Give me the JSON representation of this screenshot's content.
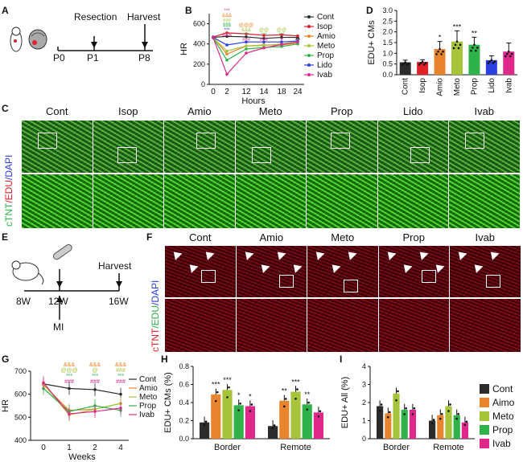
{
  "panels": {
    "A": {
      "letter": "A",
      "labels": {
        "resection": "Resection",
        "harvest": "Harvest",
        "p0": "P0",
        "p1": "P1",
        "p8": "P8"
      }
    },
    "B": {
      "letter": "B"
    },
    "C": {
      "letter": "C",
      "groups": [
        "Cont",
        "Isop",
        "Amio",
        "Meto",
        "Prop",
        "Lido",
        "Ivab"
      ],
      "ylabel": [
        "cTNT",
        "/EDU",
        "/DAPI"
      ]
    },
    "D": {
      "letter": "D"
    },
    "E": {
      "letter": "E",
      "labels": {
        "harvest": "Harvest",
        "w8": "8W",
        "w12": "12W",
        "w16": "16W",
        "mi": "MI"
      }
    },
    "F": {
      "letter": "F",
      "groups": [
        "Cont",
        "Amio",
        "Meto",
        "Prop",
        "Ivab"
      ],
      "ylabel": [
        "cTNT",
        "/EDU",
        "/DAPI"
      ]
    },
    "G": {
      "letter": "G"
    },
    "H": {
      "letter": "H"
    },
    "I": {
      "letter": "I"
    },
    "HI_legend": [
      "Cont",
      "Aimo",
      "Meto",
      "Prop",
      "Ivab"
    ]
  },
  "colors": {
    "Cont": "#2b2b2b",
    "Isop": "#e0212a",
    "Amio": "#e9842e",
    "Meto": "#a6c43a",
    "Prop": "#2fb24a",
    "Lido": "#2c3fe0",
    "Ivab": "#e0288a"
  },
  "chart_data": [
    {
      "id": "B",
      "type": "line",
      "xlabel": "Hours",
      "ylabel": "HR",
      "x": [
        0,
        2,
        12,
        14,
        18,
        24
      ],
      "xticks": [
        "0",
        "2",
        "12",
        "14",
        "18",
        "24"
      ],
      "ylim": [
        0,
        700
      ],
      "yticks": [
        0,
        200,
        400,
        600
      ],
      "series": [
        {
          "name": "Cont",
          "values": [
            465,
            475,
            470,
            455,
            465,
            465
          ]
        },
        {
          "name": "Isop",
          "values": [
            470,
            510,
            500,
            485,
            490,
            480
          ]
        },
        {
          "name": "Amio",
          "values": [
            465,
            300,
            380,
            390,
            390,
            410
          ]
        },
        {
          "name": "Meto",
          "values": [
            460,
            330,
            380,
            385,
            400,
            425
          ]
        },
        {
          "name": "Prop",
          "values": [
            460,
            240,
            350,
            365,
            375,
            400
          ]
        },
        {
          "name": "Lido",
          "values": [
            465,
            390,
            420,
            420,
            420,
            430
          ]
        },
        {
          "name": "Ivab",
          "values": [
            460,
            100,
            310,
            360,
            395,
            420
          ]
        }
      ],
      "legend_position": "right",
      "annotations": [
        "***",
        "&&&",
        "###",
        "$$$",
        "***",
        "&&&",
        "@@@",
        "&&&",
        "***",
        "###",
        "$$$",
        "@@",
        "***",
        "###",
        "@@",
        "***",
        "#",
        "**"
      ]
    },
    {
      "id": "D",
      "type": "bar",
      "ylabel": "EDU+ CMs",
      "categories": [
        "Cont",
        "Isop",
        "Amio",
        "Meto",
        "Prop",
        "Lido",
        "Ivab"
      ],
      "values": [
        0.58,
        0.6,
        1.2,
        1.55,
        1.4,
        0.68,
        1.08
      ],
      "errors": [
        0.1,
        0.1,
        0.35,
        0.5,
        0.35,
        0.2,
        0.4
      ],
      "ylim": [
        0,
        3.0
      ],
      "yticks": [
        0.0,
        0.5,
        1.0,
        1.5,
        2.0,
        2.5,
        3.0
      ],
      "significance": [
        "",
        "",
        "*",
        "***",
        "**",
        "",
        ""
      ]
    },
    {
      "id": "G",
      "type": "line",
      "xlabel": "Weeks",
      "ylabel": "HR",
      "x": [
        0,
        1,
        2,
        4
      ],
      "xticks": [
        "0",
        "1",
        "2",
        "4"
      ],
      "ylim": [
        400,
        700
      ],
      "yticks": [
        400,
        500,
        600,
        700
      ],
      "series": [
        {
          "name": "Cont",
          "values": [
            645,
            625,
            620,
            600
          ]
        },
        {
          "name": "Amio",
          "values": [
            640,
            530,
            535,
            560
          ]
        },
        {
          "name": "Meto",
          "values": [
            645,
            510,
            535,
            560
          ]
        },
        {
          "name": "Prop",
          "values": [
            625,
            525,
            550,
            530
          ]
        },
        {
          "name": "Ivab",
          "values": [
            650,
            515,
            525,
            540
          ]
        }
      ],
      "legend_position": "right",
      "annotations": [
        "&&&",
        "@@@",
        "***",
        "###",
        "&&&",
        "@",
        "***",
        "###",
        "&&&",
        "###",
        "***",
        "###"
      ]
    },
    {
      "id": "H",
      "type": "bar",
      "ylabel": "EDU+ CMs (%)",
      "groups": [
        "Border",
        "Remote"
      ],
      "series": [
        {
          "name": "Cont",
          "values": [
            0.18,
            0.14
          ]
        },
        {
          "name": "Aimo",
          "values": [
            0.49,
            0.42
          ]
        },
        {
          "name": "Meto",
          "values": [
            0.54,
            0.52
          ]
        },
        {
          "name": "Prop",
          "values": [
            0.37,
            0.38
          ]
        },
        {
          "name": "Ivab",
          "values": [
            0.36,
            0.29
          ]
        }
      ],
      "ylim": [
        0,
        0.8
      ],
      "yticks": [
        0.0,
        0.2,
        0.4,
        0.6,
        0.8
      ],
      "significance": [
        [
          "",
          "***",
          "***",
          "*",
          "*"
        ],
        [
          "",
          "**",
          "***",
          "**",
          ""
        ]
      ]
    },
    {
      "id": "I",
      "type": "bar",
      "ylabel": "EDU+ All (%)",
      "groups": [
        "Border",
        "Remote"
      ],
      "series": [
        {
          "name": "Cont",
          "values": [
            1.8,
            1.0
          ]
        },
        {
          "name": "Aimo",
          "values": [
            1.4,
            1.3
          ]
        },
        {
          "name": "Meto",
          "values": [
            2.5,
            1.8
          ]
        },
        {
          "name": "Prop",
          "values": [
            1.6,
            1.3
          ]
        },
        {
          "name": "Ivab",
          "values": [
            1.6,
            0.9
          ]
        }
      ],
      "ylim": [
        0,
        4
      ],
      "yticks": [
        0,
        1,
        2,
        3,
        4
      ]
    }
  ]
}
